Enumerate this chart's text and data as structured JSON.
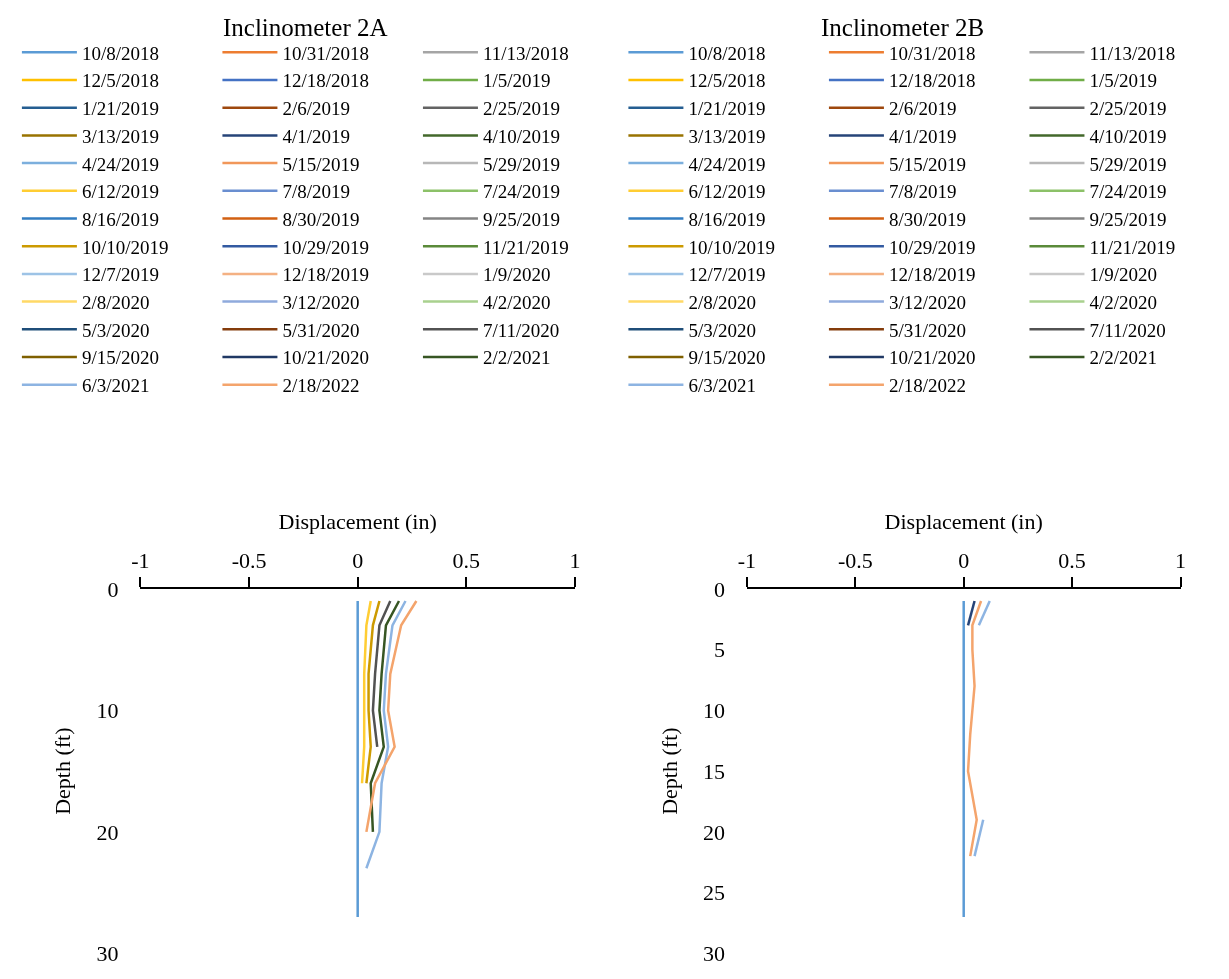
{
  "chart_data": [
    {
      "type": "line",
      "title": "Inclinometer 2A",
      "xlabel": "Displacement (in)",
      "ylabel": "Depth (ft)",
      "orientation": "horizontal",
      "legend": "top",
      "xlim": [
        -1,
        1
      ],
      "xticks": [
        -1,
        -0.5,
        0,
        0.5,
        1
      ],
      "ylim": [
        30,
        0
      ],
      "yticks": [
        0,
        10,
        20,
        30
      ],
      "x": [
        1,
        3,
        7,
        10,
        13,
        16,
        20,
        23,
        27
      ],
      "series": [
        {
          "name": "10/8/2018",
          "color": "#5B9BD5",
          "values": [
            0,
            0,
            0,
            0,
            0,
            0,
            0,
            0,
            0
          ]
        },
        {
          "name": "10/31/2018",
          "color": "#ED7D31",
          "values": [
            null,
            null,
            null,
            null,
            null,
            null,
            null,
            null,
            null
          ]
        },
        {
          "name": "11/13/2018",
          "color": "#A5A5A5",
          "values": [
            null,
            null,
            null,
            null,
            null,
            null,
            null,
            null,
            null
          ]
        },
        {
          "name": "12/5/2018",
          "color": "#FFC000",
          "values": [
            null,
            null,
            null,
            null,
            null,
            null,
            null,
            null,
            null
          ]
        },
        {
          "name": "12/18/2018",
          "color": "#4472C4",
          "values": [
            null,
            null,
            null,
            null,
            null,
            null,
            null,
            null,
            null
          ]
        },
        {
          "name": "1/5/2019",
          "color": "#70AD47",
          "values": [
            null,
            null,
            null,
            null,
            null,
            null,
            null,
            null,
            null
          ]
        },
        {
          "name": "1/21/2019",
          "color": "#255E91",
          "values": [
            null,
            null,
            null,
            null,
            null,
            null,
            null,
            null,
            null
          ]
        },
        {
          "name": "2/6/2019",
          "color": "#9E480E",
          "values": [
            null,
            null,
            null,
            null,
            null,
            null,
            null,
            null,
            null
          ]
        },
        {
          "name": "2/25/2019",
          "color": "#636363",
          "values": [
            null,
            null,
            null,
            null,
            null,
            null,
            null,
            null,
            null
          ]
        },
        {
          "name": "3/13/2019",
          "color": "#997300",
          "values": [
            null,
            null,
            null,
            null,
            null,
            null,
            null,
            null,
            null
          ]
        },
        {
          "name": "4/1/2019",
          "color": "#264478",
          "values": [
            null,
            null,
            null,
            null,
            null,
            null,
            null,
            null,
            null
          ]
        },
        {
          "name": "4/10/2019",
          "color": "#43682B",
          "values": [
            null,
            null,
            null,
            null,
            null,
            null,
            null,
            null,
            null
          ]
        },
        {
          "name": "4/24/2019",
          "color": "#7CAFDD",
          "values": [
            null,
            null,
            null,
            null,
            null,
            null,
            null,
            null,
            null
          ]
        },
        {
          "name": "5/15/2019",
          "color": "#F1975A",
          "values": [
            null,
            null,
            null,
            null,
            null,
            null,
            null,
            null,
            null
          ]
        },
        {
          "name": "5/29/2019",
          "color": "#B7B7B7",
          "values": [
            null,
            null,
            null,
            null,
            null,
            null,
            null,
            null,
            null
          ]
        },
        {
          "name": "6/12/2019",
          "color": "#FFCD33",
          "values": [
            0.06,
            0.04,
            0.03,
            0.03,
            0.03,
            0.02,
            null,
            null,
            null
          ]
        },
        {
          "name": "7/8/2019",
          "color": "#698ED0",
          "values": [
            null,
            null,
            null,
            null,
            null,
            null,
            null,
            null,
            null
          ]
        },
        {
          "name": "7/24/2019",
          "color": "#8CC168",
          "values": [
            null,
            null,
            null,
            null,
            null,
            null,
            null,
            null,
            null
          ]
        },
        {
          "name": "8/16/2019",
          "color": "#327DC2",
          "values": [
            null,
            null,
            null,
            null,
            null,
            null,
            null,
            null,
            null
          ]
        },
        {
          "name": "8/30/2019",
          "color": "#D26012",
          "values": [
            null,
            null,
            null,
            null,
            null,
            null,
            null,
            null,
            null
          ]
        },
        {
          "name": "9/25/2019",
          "color": "#848484",
          "values": [
            null,
            null,
            null,
            null,
            null,
            null,
            null,
            null,
            null
          ]
        },
        {
          "name": "10/10/2019",
          "color": "#CC9A00",
          "values": [
            0.1,
            0.07,
            0.05,
            0.05,
            0.06,
            0.04,
            null,
            null,
            null
          ]
        },
        {
          "name": "10/29/2019",
          "color": "#335AA1",
          "values": [
            null,
            null,
            null,
            null,
            null,
            null,
            null,
            null,
            null
          ]
        },
        {
          "name": "11/21/2019",
          "color": "#5A8A39",
          "values": [
            null,
            null,
            null,
            null,
            null,
            null,
            null,
            null,
            null
          ]
        },
        {
          "name": "12/7/2019",
          "color": "#9DC3E6",
          "values": [
            null,
            null,
            null,
            null,
            null,
            null,
            null,
            null,
            null
          ]
        },
        {
          "name": "12/18/2019",
          "color": "#F4B183",
          "values": [
            null,
            null,
            null,
            null,
            null,
            null,
            null,
            null,
            null
          ]
        },
        {
          "name": "1/9/2020",
          "color": "#C9C9C9",
          "values": [
            null,
            null,
            null,
            null,
            null,
            null,
            null,
            null,
            null
          ]
        },
        {
          "name": "2/8/2020",
          "color": "#FFD966",
          "values": [
            null,
            null,
            null,
            null,
            null,
            null,
            null,
            null,
            null
          ]
        },
        {
          "name": "3/12/2020",
          "color": "#8FAADC",
          "values": [
            null,
            null,
            null,
            null,
            null,
            null,
            null,
            null,
            null
          ]
        },
        {
          "name": "4/2/2020",
          "color": "#A9D18E",
          "values": [
            null,
            null,
            null,
            null,
            null,
            null,
            null,
            null,
            null
          ]
        },
        {
          "name": "5/3/2020",
          "color": "#1F4E79",
          "values": [
            null,
            null,
            null,
            null,
            null,
            null,
            null,
            null,
            null
          ]
        },
        {
          "name": "5/31/2020",
          "color": "#843C0C",
          "values": [
            null,
            null,
            null,
            null,
            null,
            null,
            null,
            null,
            null
          ]
        },
        {
          "name": "7/11/2020",
          "color": "#525252",
          "values": [
            0.15,
            0.1,
            0.08,
            0.07,
            0.09,
            null,
            null,
            null,
            null
          ]
        },
        {
          "name": "9/15/2020",
          "color": "#7F6000",
          "values": [
            null,
            null,
            null,
            null,
            null,
            null,
            null,
            null,
            null
          ]
        },
        {
          "name": "10/21/2020",
          "color": "#203864",
          "values": [
            null,
            null,
            null,
            null,
            null,
            null,
            null,
            null,
            null
          ]
        },
        {
          "name": "2/2/2021",
          "color": "#375623",
          "values": [
            0.19,
            0.13,
            0.11,
            0.1,
            0.12,
            0.06,
            0.07,
            null,
            null
          ]
        },
        {
          "name": "6/3/2021",
          "color": "#8DB4E2",
          "values": [
            0.22,
            0.16,
            0.13,
            0.12,
            0.14,
            0.11,
            0.1,
            0.04,
            null
          ]
        },
        {
          "name": "2/18/2022",
          "color": "#F4A46C",
          "values": [
            0.27,
            0.2,
            0.15,
            0.14,
            0.17,
            0.08,
            0.04,
            null,
            null
          ]
        }
      ]
    },
    {
      "type": "line",
      "title": "Inclinometer 2B",
      "xlabel": "Displacement (in)",
      "ylabel": "Depth (ft)",
      "orientation": "horizontal",
      "legend": "top",
      "xlim": [
        -1,
        1
      ],
      "xticks": [
        -1,
        -0.5,
        0,
        0.5,
        1
      ],
      "ylim": [
        30,
        0
      ],
      "yticks": [
        0,
        5,
        10,
        15,
        20,
        25,
        30
      ],
      "x": [
        1,
        3,
        5,
        8,
        12,
        15,
        19,
        22,
        25,
        27
      ],
      "series": [
        {
          "name": "10/8/2018",
          "color": "#5B9BD5",
          "values": [
            0,
            0,
            0,
            0,
            0,
            0,
            0,
            0,
            0,
            0
          ]
        },
        {
          "name": "10/31/2018",
          "color": "#ED7D31",
          "values": [
            null,
            null,
            null,
            null,
            null,
            null,
            null,
            null,
            null,
            null
          ]
        },
        {
          "name": "11/13/2018",
          "color": "#A5A5A5",
          "values": [
            null,
            null,
            null,
            null,
            null,
            null,
            null,
            null,
            null,
            null
          ]
        },
        {
          "name": "12/5/2018",
          "color": "#FFC000",
          "values": [
            null,
            null,
            null,
            null,
            null,
            null,
            null,
            null,
            null,
            null
          ]
        },
        {
          "name": "12/18/2018",
          "color": "#4472C4",
          "values": [
            null,
            null,
            null,
            null,
            null,
            null,
            null,
            null,
            null,
            null
          ]
        },
        {
          "name": "1/5/2019",
          "color": "#70AD47",
          "values": [
            null,
            null,
            null,
            null,
            null,
            null,
            null,
            null,
            null,
            null
          ]
        },
        {
          "name": "1/21/2019",
          "color": "#255E91",
          "values": [
            null,
            null,
            null,
            null,
            null,
            null,
            null,
            null,
            null,
            null
          ]
        },
        {
          "name": "2/6/2019",
          "color": "#9E480E",
          "values": [
            null,
            null,
            null,
            null,
            null,
            null,
            null,
            null,
            null,
            null
          ]
        },
        {
          "name": "2/25/2019",
          "color": "#636363",
          "values": [
            null,
            null,
            null,
            null,
            null,
            null,
            null,
            null,
            null,
            null
          ]
        },
        {
          "name": "3/13/2019",
          "color": "#997300",
          "values": [
            null,
            null,
            null,
            null,
            null,
            null,
            null,
            null,
            null,
            null
          ]
        },
        {
          "name": "4/1/2019",
          "color": "#264478",
          "values": [
            0.05,
            0.02,
            null,
            null,
            null,
            null,
            null,
            null,
            null,
            null
          ]
        },
        {
          "name": "4/10/2019",
          "color": "#43682B",
          "values": [
            null,
            null,
            null,
            null,
            null,
            null,
            null,
            null,
            null,
            null
          ]
        },
        {
          "name": "4/24/2019",
          "color": "#7CAFDD",
          "values": [
            null,
            null,
            null,
            null,
            null,
            null,
            null,
            null,
            null,
            null
          ]
        },
        {
          "name": "5/15/2019",
          "color": "#F1975A",
          "values": [
            null,
            null,
            null,
            null,
            null,
            null,
            null,
            null,
            null,
            null
          ]
        },
        {
          "name": "5/29/2019",
          "color": "#B7B7B7",
          "values": [
            null,
            null,
            null,
            null,
            null,
            null,
            null,
            null,
            null,
            null
          ]
        },
        {
          "name": "6/12/2019",
          "color": "#FFCD33",
          "values": [
            null,
            null,
            null,
            null,
            null,
            null,
            null,
            null,
            null,
            null
          ]
        },
        {
          "name": "7/8/2019",
          "color": "#698ED0",
          "values": [
            null,
            null,
            null,
            null,
            null,
            null,
            null,
            null,
            null,
            null
          ]
        },
        {
          "name": "7/24/2019",
          "color": "#8CC168",
          "values": [
            null,
            null,
            null,
            null,
            null,
            null,
            null,
            null,
            null,
            null
          ]
        },
        {
          "name": "8/16/2019",
          "color": "#327DC2",
          "values": [
            null,
            null,
            null,
            null,
            null,
            null,
            null,
            null,
            null,
            null
          ]
        },
        {
          "name": "8/30/2019",
          "color": "#D26012",
          "values": [
            null,
            null,
            null,
            null,
            null,
            null,
            null,
            null,
            null,
            null
          ]
        },
        {
          "name": "9/25/2019",
          "color": "#848484",
          "values": [
            null,
            null,
            null,
            null,
            null,
            null,
            null,
            null,
            null,
            null
          ]
        },
        {
          "name": "10/10/2019",
          "color": "#CC9A00",
          "values": [
            null,
            null,
            null,
            null,
            null,
            null,
            null,
            null,
            null,
            null
          ]
        },
        {
          "name": "10/29/2019",
          "color": "#335AA1",
          "values": [
            null,
            null,
            null,
            null,
            null,
            null,
            null,
            null,
            null,
            null
          ]
        },
        {
          "name": "11/21/2019",
          "color": "#5A8A39",
          "values": [
            null,
            null,
            null,
            null,
            null,
            null,
            null,
            null,
            null,
            null
          ]
        },
        {
          "name": "12/7/2019",
          "color": "#9DC3E6",
          "values": [
            null,
            null,
            null,
            null,
            null,
            null,
            null,
            null,
            null,
            null
          ]
        },
        {
          "name": "12/18/2019",
          "color": "#F4B183",
          "values": [
            null,
            null,
            null,
            null,
            null,
            null,
            null,
            null,
            null,
            null
          ]
        },
        {
          "name": "1/9/2020",
          "color": "#C9C9C9",
          "values": [
            null,
            null,
            null,
            null,
            null,
            null,
            null,
            null,
            null,
            null
          ]
        },
        {
          "name": "2/8/2020",
          "color": "#FFD966",
          "values": [
            null,
            null,
            null,
            null,
            null,
            null,
            null,
            null,
            null,
            null
          ]
        },
        {
          "name": "3/12/2020",
          "color": "#8FAADC",
          "values": [
            null,
            null,
            null,
            null,
            null,
            null,
            null,
            null,
            null,
            null
          ]
        },
        {
          "name": "4/2/2020",
          "color": "#A9D18E",
          "values": [
            null,
            null,
            null,
            null,
            null,
            null,
            null,
            null,
            null,
            null
          ]
        },
        {
          "name": "5/3/2020",
          "color": "#1F4E79",
          "values": [
            null,
            null,
            null,
            null,
            null,
            null,
            null,
            null,
            null,
            null
          ]
        },
        {
          "name": "5/31/2020",
          "color": "#843C0C",
          "values": [
            null,
            null,
            null,
            null,
            null,
            null,
            null,
            null,
            null,
            null
          ]
        },
        {
          "name": "7/11/2020",
          "color": "#525252",
          "values": [
            null,
            null,
            null,
            null,
            null,
            null,
            null,
            null,
            null,
            null
          ]
        },
        {
          "name": "9/15/2020",
          "color": "#7F6000",
          "values": [
            null,
            null,
            null,
            null,
            null,
            null,
            null,
            null,
            null,
            null
          ]
        },
        {
          "name": "10/21/2020",
          "color": "#203864",
          "values": [
            null,
            null,
            null,
            null,
            null,
            null,
            null,
            null,
            null,
            null
          ]
        },
        {
          "name": "2/2/2021",
          "color": "#375623",
          "values": [
            null,
            null,
            null,
            null,
            null,
            null,
            null,
            null,
            null,
            null
          ]
        },
        {
          "name": "6/3/2021",
          "color": "#8DB4E2",
          "values": [
            0.12,
            0.07,
            null,
            null,
            null,
            null,
            0.09,
            0.05,
            null,
            null
          ]
        },
        {
          "name": "2/18/2022",
          "color": "#F4A46C",
          "values": [
            0.08,
            0.04,
            0.04,
            0.05,
            0.03,
            0.02,
            0.06,
            0.03,
            null,
            null
          ]
        }
      ]
    }
  ]
}
